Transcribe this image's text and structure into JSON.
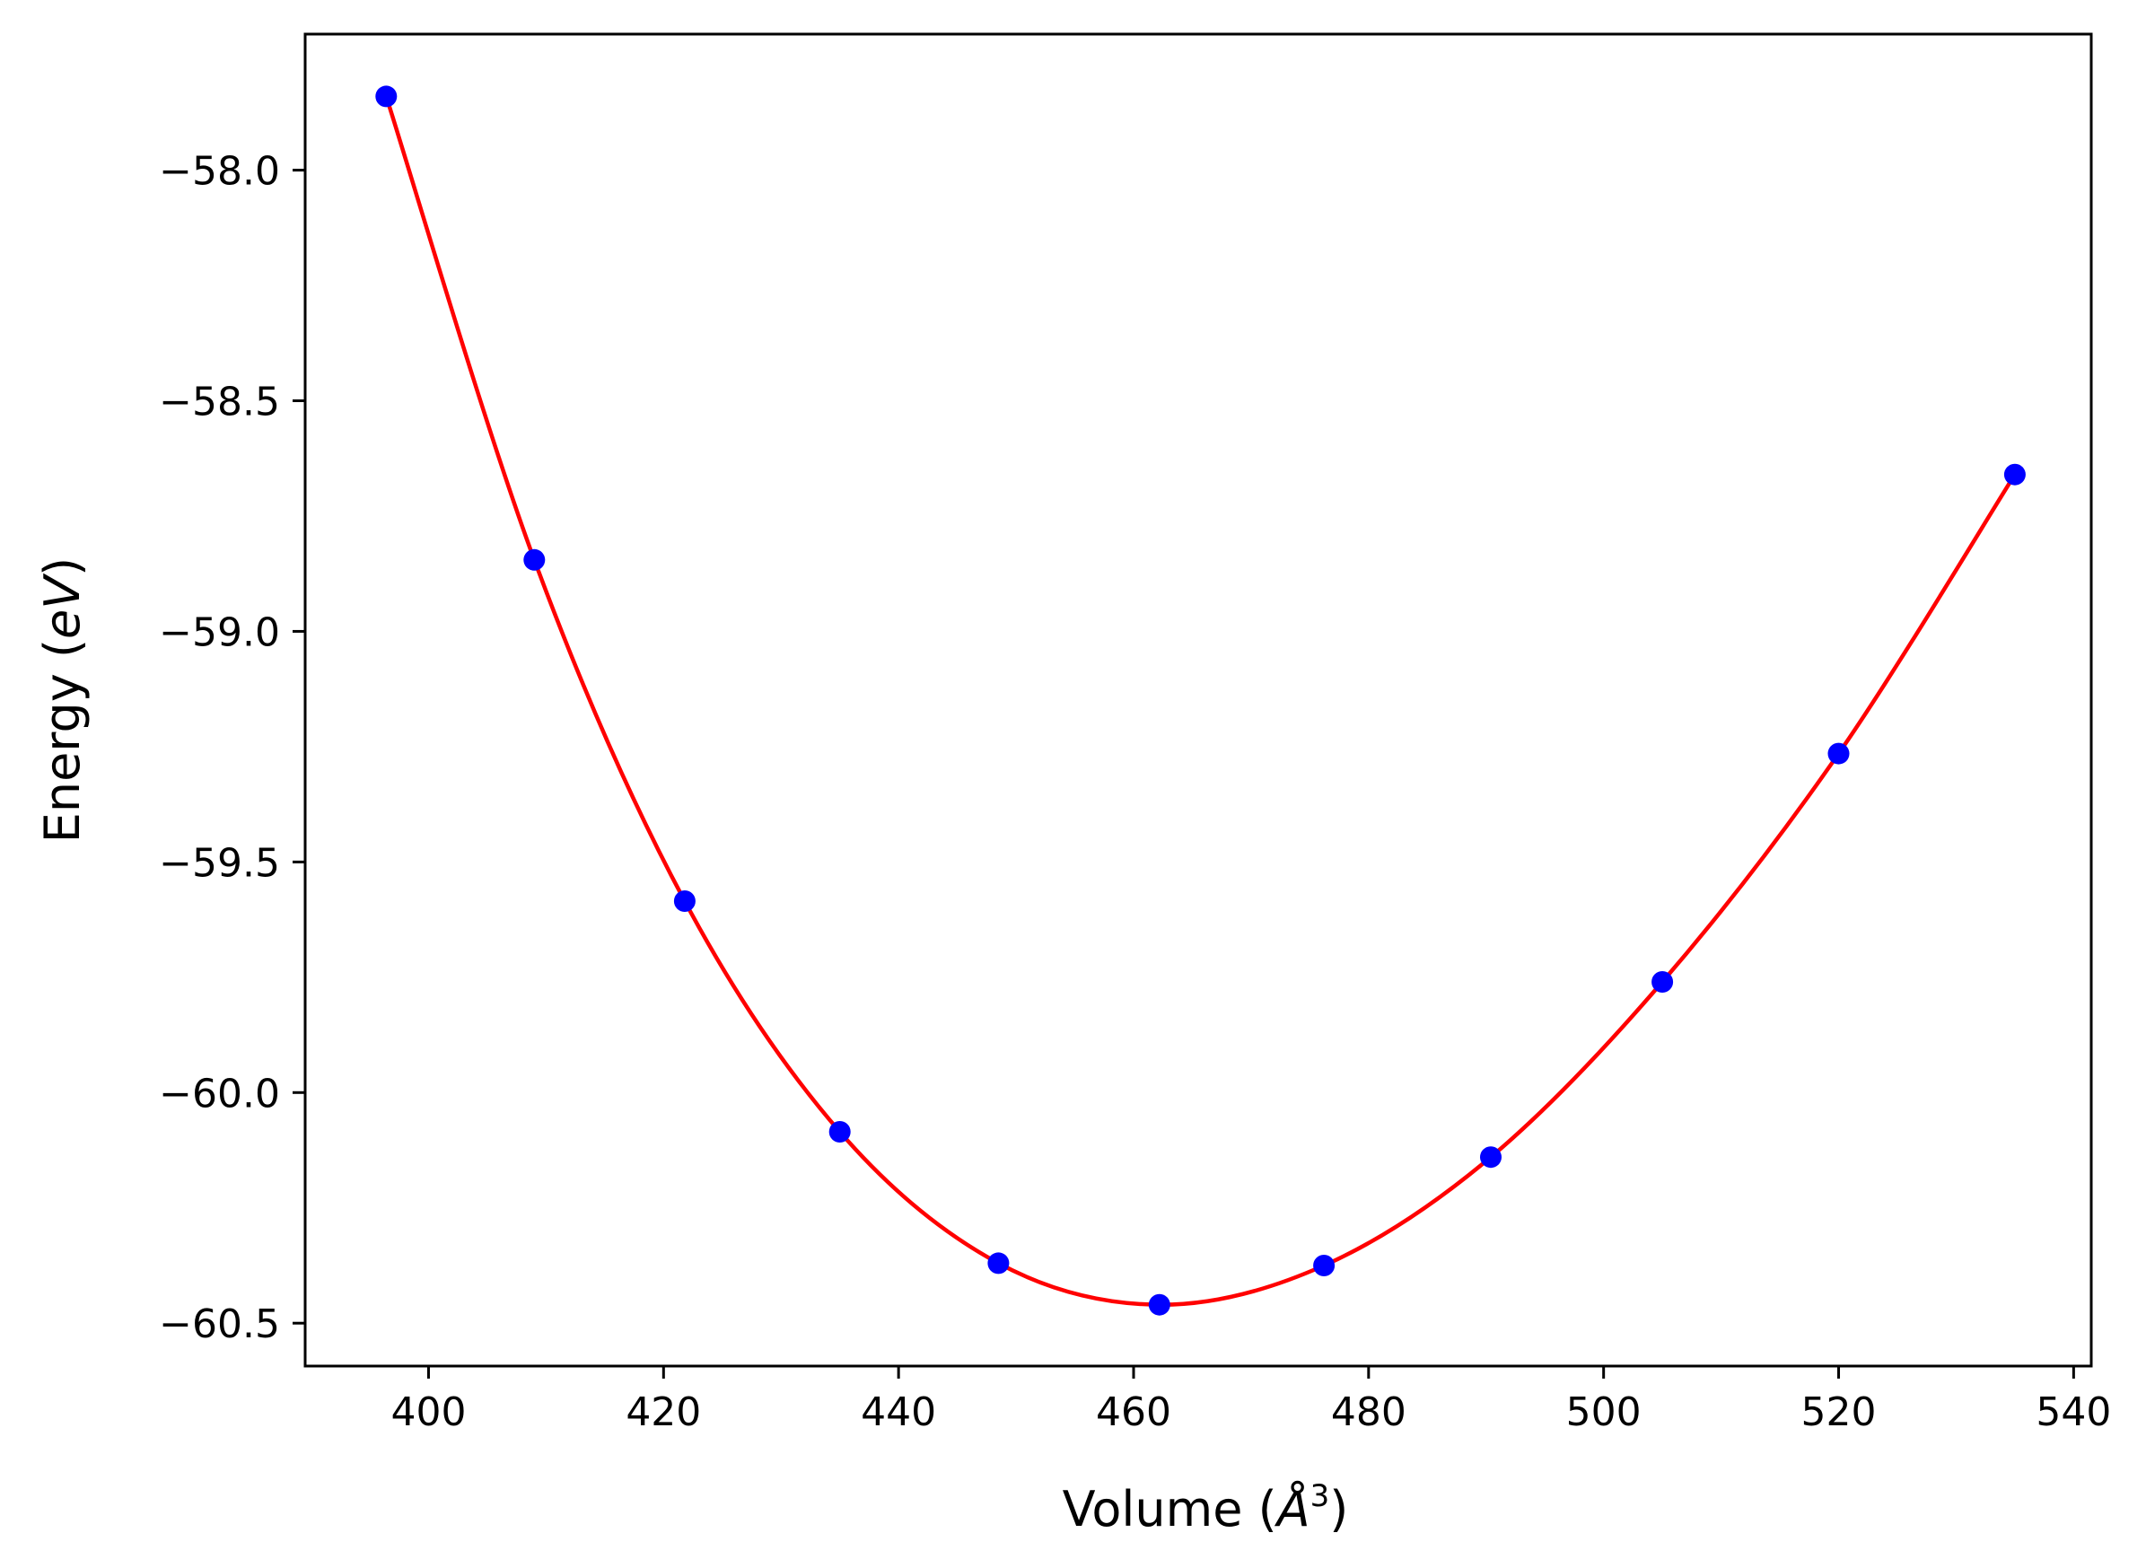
{
  "chart_data": {
    "type": "scatter",
    "title": "",
    "xlabel": {
      "prefix": "Volume (",
      "symbol": "Å",
      "sup": "3",
      "suffix": ")"
    },
    "ylabel": {
      "prefix": "Energy (",
      "symbol": "eV",
      "suffix": ")"
    },
    "xlim": [
      389.5,
      541.5
    ],
    "ylim": [
      -60.593,
      -57.705
    ],
    "xticks": [
      400,
      420,
      440,
      460,
      480,
      500,
      520,
      540
    ],
    "xtick_labels": [
      "400",
      "420",
      "440",
      "460",
      "480",
      "500",
      "520",
      "540"
    ],
    "yticks": [
      -58.0,
      -58.5,
      -59.0,
      -59.5,
      -60.0,
      -60.5
    ],
    "ytick_labels": [
      "−58.0",
      "−58.5",
      "−59.0",
      "−59.5",
      "−60.0",
      "−60.5"
    ],
    "grid": false,
    "series": [
      {
        "kind": "points",
        "color": "#0000ff",
        "x": [
          396.4,
          409.0,
          421.8,
          435.0,
          448.5,
          462.2,
          476.2,
          490.4,
          505.0,
          520.0,
          535.0
        ],
        "y": [
          -57.84,
          -58.845,
          -59.585,
          -60.085,
          -60.37,
          -60.46,
          -60.375,
          -60.14,
          -59.76,
          -59.265,
          -58.66
        ]
      },
      {
        "kind": "fit-curve",
        "color": "#ff0000",
        "x": [
          396.4,
          409.0,
          421.8,
          435.0,
          448.5,
          462.2,
          476.2,
          490.4,
          505.0,
          520.0,
          535.0
        ],
        "y": [
          -57.84,
          -58.845,
          -59.585,
          -60.085,
          -60.37,
          -60.46,
          -60.375,
          -60.14,
          -59.76,
          -59.265,
          -58.66
        ]
      }
    ]
  }
}
